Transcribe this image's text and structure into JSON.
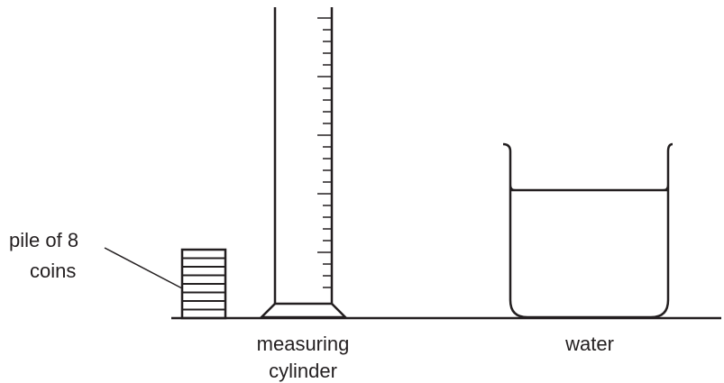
{
  "labels": {
    "coins_line1": "pile of 8",
    "coins_line2": "coins",
    "cylinder_line1": "measuring",
    "cylinder_line2": "cylinder",
    "beaker": "water"
  },
  "coins": {
    "count": 8
  },
  "colors": {
    "ink": "#231f20",
    "background": "#ffffff"
  }
}
